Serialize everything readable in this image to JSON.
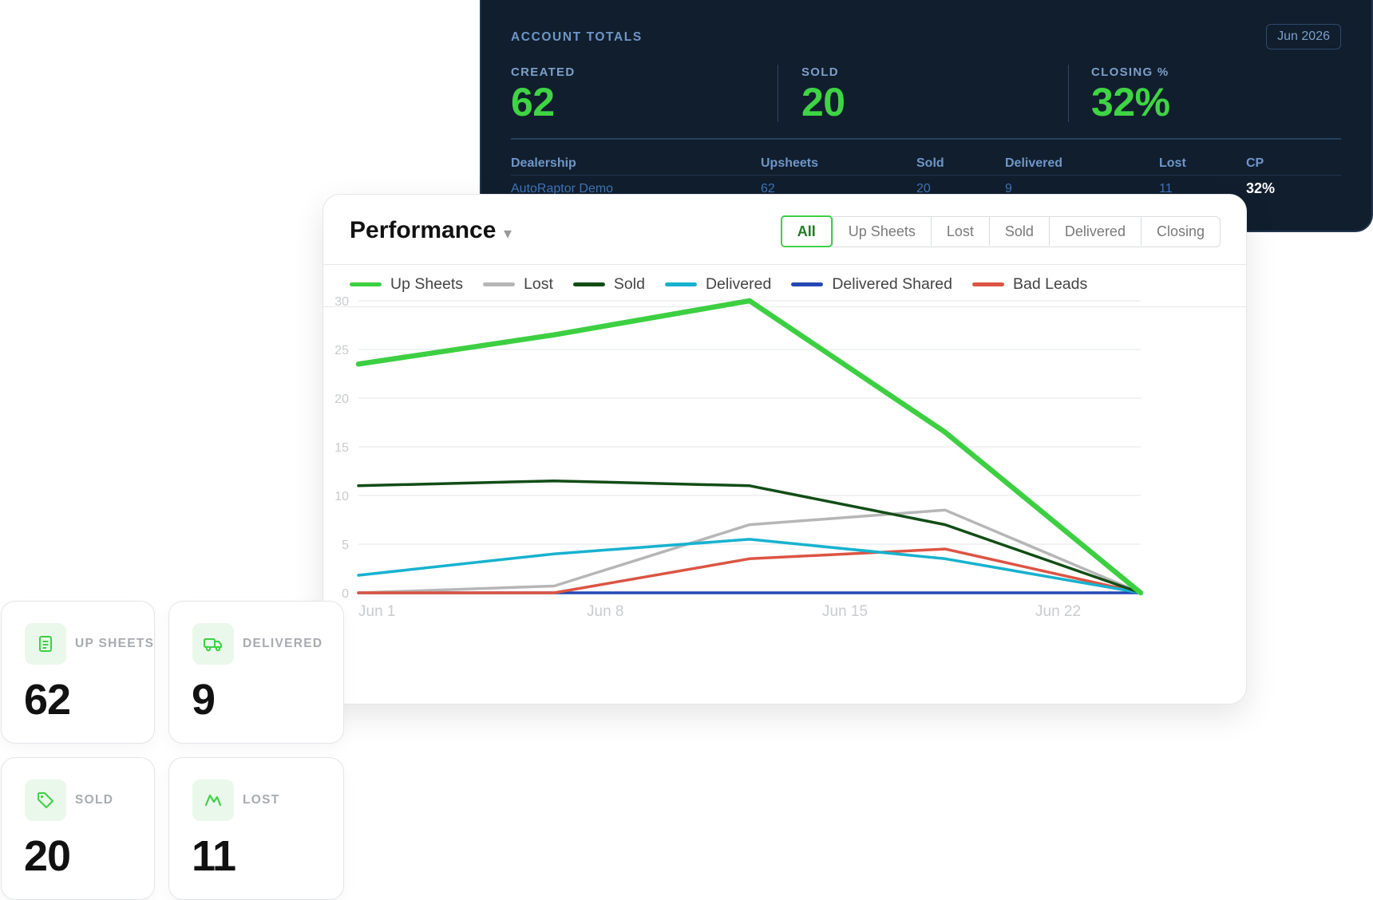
{
  "account_totals": {
    "title": "ACCOUNT TOTALS",
    "period": "Jun 2026",
    "stats": [
      {
        "label": "CREATED",
        "value": "62"
      },
      {
        "label": "SOLD",
        "value": "20"
      },
      {
        "label": "CLOSING %",
        "value": "32%"
      }
    ],
    "table": {
      "headers": [
        "Dealership",
        "Upsheets",
        "Sold",
        "Delivered",
        "Lost",
        "CP"
      ],
      "rows": [
        {
          "dealership": "AutoRaptor Demo",
          "upsheets": "62",
          "sold": "20",
          "delivered": "9",
          "lost": "11",
          "cp": "32%"
        }
      ]
    }
  },
  "performance": {
    "title": "Performance",
    "caret": "▾",
    "tabs": [
      {
        "label": "All",
        "active": true
      },
      {
        "label": "Up Sheets",
        "active": false
      },
      {
        "label": "Lost",
        "active": false
      },
      {
        "label": "Sold",
        "active": false
      },
      {
        "label": "Delivered",
        "active": false
      },
      {
        "label": "Closing",
        "active": false
      }
    ]
  },
  "chart_data": {
    "type": "line",
    "x": [
      "Jun 1",
      "Jun 8",
      "Jun 15",
      "Jun 22",
      "Jun 29"
    ],
    "x_tick_labels": [
      "Jun 1",
      "Jun 8",
      "Jun 15",
      "Jun 22"
    ],
    "ylim": [
      0,
      30
    ],
    "y_ticks": [
      0,
      5,
      10,
      15,
      20,
      25,
      30
    ],
    "grid": true,
    "legend_position": "top",
    "series": [
      {
        "name": "Up Sheets",
        "color": "#3dcf42",
        "values": [
          23.5,
          26.5,
          30,
          16.5,
          0
        ]
      },
      {
        "name": "Lost",
        "color": "#b6b6b6",
        "values": [
          0,
          0.7,
          7,
          8.5,
          0
        ]
      },
      {
        "name": "Sold",
        "color": "#124d16",
        "values": [
          11,
          11.5,
          11,
          7,
          0
        ]
      },
      {
        "name": "Delivered",
        "color": "#17b2cf",
        "values": [
          1.8,
          4,
          5.5,
          3.5,
          0
        ]
      },
      {
        "name": "Delivered Shared",
        "color": "#2447b4",
        "values": [
          0,
          0,
          0,
          0,
          0
        ]
      },
      {
        "name": "Bad Leads",
        "color": "#dc5443",
        "values": [
          0,
          0,
          3.5,
          4.5,
          0
        ]
      }
    ]
  },
  "tiles": [
    {
      "label": "UP SHEETS",
      "value": "62",
      "icon": "document-icon"
    },
    {
      "label": "DELIVERED",
      "value": "9",
      "icon": "truck-icon"
    },
    {
      "label": "SOLD",
      "value": "20",
      "icon": "tag-icon"
    },
    {
      "label": "LOST",
      "value": "11",
      "icon": "trend-down-icon"
    }
  ],
  "colors": {
    "accent_green": "#3fd444",
    "dark_panel": "#111e2e",
    "muted_blue": "#6f96c8"
  }
}
